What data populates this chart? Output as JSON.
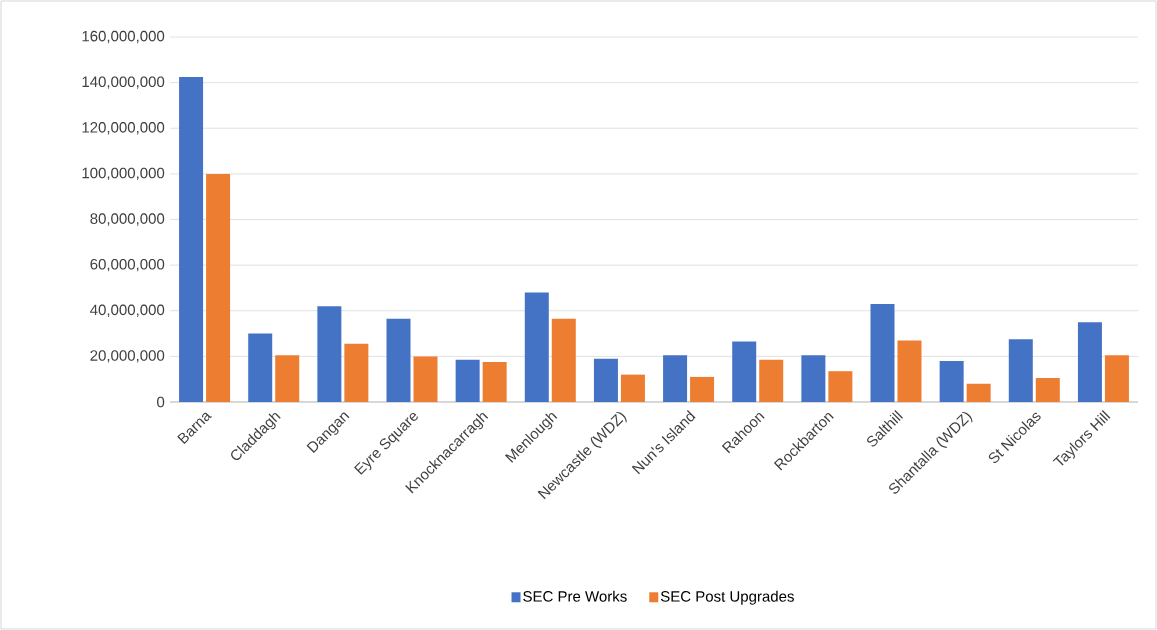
{
  "chart_data": {
    "type": "bar",
    "categories": [
      "Barna",
      "Claddagh",
      "Dangan",
      "Eyre Square",
      "Knocknacarragh",
      "Menlough",
      "Newcastle (WDZ)",
      "Nun's Island",
      "Rahoon",
      "Rockbarton",
      "Salthill",
      "Shantalla (WDZ)",
      "St Nicolas",
      "Taylors Hill"
    ],
    "series": [
      {
        "name": "SEC Pre Works",
        "color": "#4472c4",
        "values": [
          142500000,
          30000000,
          42000000,
          36500000,
          18500000,
          48000000,
          19000000,
          20500000,
          26500000,
          20500000,
          43000000,
          18000000,
          27500000,
          35000000
        ]
      },
      {
        "name": "SEC Post Upgrades",
        "color": "#ed7d31",
        "values": [
          100000000,
          20500000,
          25500000,
          20000000,
          17500000,
          36500000,
          12000000,
          11000000,
          18500000,
          13500000,
          27000000,
          8000000,
          10500000,
          20500000
        ]
      }
    ],
    "ylim": [
      0,
      160000000
    ],
    "yticks": [
      {
        "value": 0,
        "label": "0"
      },
      {
        "value": 20000000,
        "label": "20,000,000"
      },
      {
        "value": 40000000,
        "label": "40,000,000"
      },
      {
        "value": 60000000,
        "label": "60,000,000"
      },
      {
        "value": 80000000,
        "label": "80,000,000"
      },
      {
        "value": 100000000,
        "label": "100,000,000"
      },
      {
        "value": 120000000,
        "label": "120,000,000"
      },
      {
        "value": 140000000,
        "label": "140,000,000"
      },
      {
        "value": 160000000,
        "label": "160,000,000"
      }
    ],
    "grid": "y",
    "legend": "bottom"
  }
}
